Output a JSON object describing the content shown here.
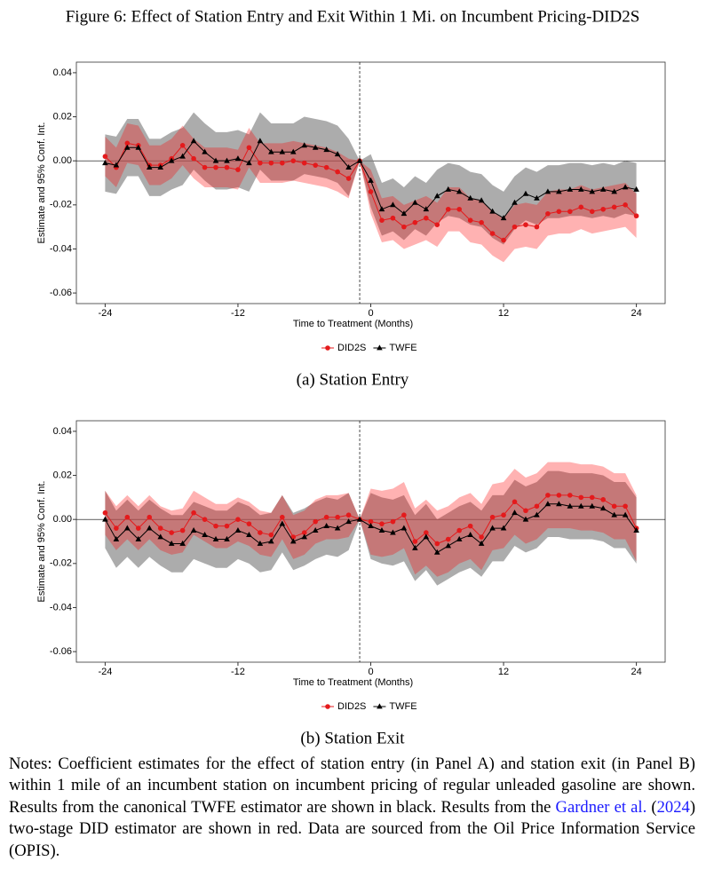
{
  "figure_title": "Figure 6: Effect of Station Entry and Exit Within 1 Mi. on Incumbent Pricing-DID2S",
  "chart_data": [
    {
      "type": "line",
      "caption": "(a) Station Entry",
      "xlabel": "Time to Treatment (Months)",
      "ylabel": "Estimate and 95% Conf. Int.",
      "x": [
        -24,
        -23,
        -22,
        -21,
        -20,
        -19,
        -18,
        -17,
        -16,
        -15,
        -14,
        -13,
        -12,
        -11,
        -10,
        -9,
        -8,
        -7,
        -6,
        -5,
        -4,
        -3,
        -2,
        -1,
        0,
        1,
        2,
        3,
        4,
        5,
        6,
        7,
        8,
        9,
        10,
        11,
        12,
        13,
        14,
        15,
        16,
        17,
        18,
        19,
        20,
        21,
        22,
        23,
        24
      ],
      "xlim": [
        -26.6,
        26.6
      ],
      "ylim": [
        -0.0648,
        0.0448
      ],
      "xticks": [
        -24,
        -12,
        0,
        12,
        24
      ],
      "yticks": [
        0.04,
        0.02,
        {
          "value": 0,
          "label": "0.00"
        },
        -0.02,
        -0.04,
        -0.06
      ],
      "vline": -1,
      "series": [
        {
          "name": "DID2S",
          "color": "#e41a1c",
          "marker": "circle",
          "band_color": "#ff0000",
          "band_opacity": 0.3,
          "values": [
            0.002,
            -0.003,
            0.008,
            0.007,
            -0.002,
            -0.002,
            0.001,
            0.007,
            0.001,
            -0.003,
            -0.003,
            -0.003,
            -0.004,
            0.006,
            -0.001,
            -0.001,
            -0.001,
            0.0,
            -0.001,
            -0.002,
            -0.003,
            -0.005,
            -0.008,
            0,
            -0.014,
            -0.027,
            -0.026,
            -0.03,
            -0.028,
            -0.026,
            -0.029,
            -0.022,
            -0.022,
            -0.027,
            -0.028,
            -0.033,
            -0.036,
            -0.03,
            -0.029,
            -0.03,
            -0.024,
            -0.023,
            -0.023,
            -0.021,
            -0.023,
            -0.022,
            -0.021,
            -0.02,
            -0.025
          ],
          "lower": [
            -0.007,
            -0.012,
            -0.001,
            -0.002,
            -0.011,
            -0.011,
            -0.008,
            -0.002,
            -0.008,
            -0.012,
            -0.012,
            -0.012,
            -0.013,
            -0.003,
            -0.01,
            -0.01,
            -0.01,
            -0.009,
            -0.01,
            -0.011,
            -0.012,
            -0.014,
            -0.017,
            0,
            -0.024,
            -0.037,
            -0.036,
            -0.04,
            -0.038,
            -0.036,
            -0.039,
            -0.032,
            -0.032,
            -0.037,
            -0.038,
            -0.043,
            -0.046,
            -0.04,
            -0.039,
            -0.04,
            -0.034,
            -0.033,
            -0.033,
            -0.031,
            -0.033,
            -0.032,
            -0.031,
            -0.03,
            -0.035
          ],
          "upper": [
            0.011,
            0.006,
            0.017,
            0.016,
            0.007,
            0.007,
            0.01,
            0.016,
            0.01,
            0.006,
            0.006,
            0.006,
            0.005,
            0.015,
            0.008,
            0.008,
            0.008,
            0.009,
            0.008,
            0.007,
            0.006,
            0.004,
            0.001,
            0,
            -0.004,
            -0.017,
            -0.016,
            -0.02,
            -0.018,
            -0.016,
            -0.019,
            -0.012,
            -0.012,
            -0.017,
            -0.018,
            -0.023,
            -0.026,
            -0.02,
            -0.019,
            -0.02,
            -0.014,
            -0.013,
            -0.013,
            -0.011,
            -0.013,
            -0.012,
            -0.011,
            -0.01,
            -0.015
          ]
        },
        {
          "name": "TWFE",
          "color": "#000000",
          "marker": "triangle",
          "band_color": "#808080",
          "band_opacity": 0.65,
          "values": [
            -0.001,
            -0.002,
            0.006,
            0.006,
            -0.003,
            -0.003,
            0.0,
            0.002,
            0.009,
            0.004,
            0.0,
            0.0,
            0.001,
            -0.001,
            0.009,
            0.004,
            0.004,
            0.004,
            0.007,
            0.006,
            0.005,
            0.003,
            -0.003,
            0,
            -0.009,
            -0.022,
            -0.02,
            -0.024,
            -0.019,
            -0.022,
            -0.016,
            -0.013,
            -0.014,
            -0.017,
            -0.018,
            -0.023,
            -0.026,
            -0.019,
            -0.015,
            -0.017,
            -0.014,
            -0.014,
            -0.013,
            -0.013,
            -0.014,
            -0.013,
            -0.014,
            -0.012,
            -0.013
          ],
          "lower": [
            -0.014,
            -0.015,
            -0.007,
            -0.007,
            -0.016,
            -0.016,
            -0.013,
            -0.011,
            -0.004,
            -0.009,
            -0.013,
            -0.013,
            -0.012,
            -0.014,
            -0.004,
            -0.009,
            -0.009,
            -0.009,
            -0.006,
            -0.007,
            -0.008,
            -0.01,
            -0.016,
            0,
            -0.021,
            -0.034,
            -0.032,
            -0.036,
            -0.031,
            -0.034,
            -0.028,
            -0.025,
            -0.026,
            -0.029,
            -0.03,
            -0.035,
            -0.038,
            -0.031,
            -0.027,
            -0.029,
            -0.026,
            -0.026,
            -0.025,
            -0.025,
            -0.026,
            -0.025,
            -0.026,
            -0.024,
            -0.025
          ],
          "upper": [
            0.012,
            0.011,
            0.019,
            0.019,
            0.01,
            0.01,
            0.013,
            0.015,
            0.022,
            0.017,
            0.013,
            0.013,
            0.014,
            0.012,
            0.022,
            0.017,
            0.017,
            0.017,
            0.02,
            0.019,
            0.018,
            0.016,
            0.01,
            0,
            0.003,
            -0.01,
            -0.008,
            -0.012,
            -0.007,
            -0.01,
            -0.004,
            -0.001,
            -0.002,
            -0.005,
            -0.006,
            -0.011,
            -0.014,
            -0.007,
            -0.003,
            -0.005,
            -0.002,
            -0.002,
            -0.001,
            -0.001,
            -0.002,
            -0.001,
            -0.002,
            0.0,
            -0.001
          ]
        }
      ]
    },
    {
      "type": "line",
      "caption": "(b) Station Exit",
      "xlabel": "Time to Treatment (Months)",
      "ylabel": "Estimate and 95% Conf. Int.",
      "x": [
        -24,
        -23,
        -22,
        -21,
        -20,
        -19,
        -18,
        -17,
        -16,
        -15,
        -14,
        -13,
        -12,
        -11,
        -10,
        -9,
        -8,
        -7,
        -6,
        -5,
        -4,
        -3,
        -2,
        -1,
        0,
        1,
        2,
        3,
        4,
        5,
        6,
        7,
        8,
        9,
        10,
        11,
        12,
        13,
        14,
        15,
        16,
        17,
        18,
        19,
        20,
        21,
        22,
        23,
        24
      ],
      "xlim": [
        -26.6,
        26.6
      ],
      "ylim": [
        -0.0648,
        0.0448
      ],
      "xticks": [
        -24,
        -12,
        0,
        12,
        24
      ],
      "yticks": [
        0.04,
        0.02,
        {
          "value": 0,
          "label": "0.00"
        },
        -0.02,
        -0.04,
        -0.06
      ],
      "vline": -1,
      "series": [
        {
          "name": "DID2S",
          "color": "#e41a1c",
          "marker": "circle",
          "band_color": "#ff0000",
          "band_opacity": 0.3,
          "values": [
            0.003,
            -0.004,
            0.001,
            -0.004,
            0.001,
            -0.004,
            -0.006,
            -0.005,
            0.003,
            0.0,
            -0.003,
            -0.003,
            0.0,
            -0.002,
            -0.006,
            -0.007,
            0.001,
            -0.008,
            -0.006,
            -0.001,
            0.001,
            0.001,
            0.002,
            0,
            -0.001,
            -0.002,
            -0.001,
            0.002,
            -0.01,
            -0.006,
            -0.011,
            -0.009,
            -0.005,
            -0.003,
            -0.008,
            0.001,
            0.002,
            0.008,
            0.004,
            0.006,
            0.011,
            0.011,
            0.011,
            0.01,
            0.01,
            0.009,
            0.006,
            0.006,
            -0.004
          ],
          "lower": [
            -0.007,
            -0.014,
            -0.009,
            -0.014,
            -0.009,
            -0.014,
            -0.016,
            -0.015,
            -0.007,
            -0.01,
            -0.013,
            -0.013,
            -0.01,
            -0.012,
            -0.016,
            -0.017,
            -0.009,
            -0.018,
            -0.016,
            -0.011,
            -0.009,
            -0.009,
            -0.008,
            0,
            -0.016,
            -0.017,
            -0.016,
            -0.013,
            -0.025,
            -0.021,
            -0.026,
            -0.024,
            -0.02,
            -0.018,
            -0.023,
            -0.014,
            -0.013,
            -0.007,
            -0.011,
            -0.009,
            -0.004,
            -0.004,
            -0.004,
            -0.005,
            -0.005,
            -0.006,
            -0.009,
            -0.009,
            -0.019
          ],
          "upper": [
            0.013,
            0.006,
            0.011,
            0.006,
            0.011,
            0.006,
            0.004,
            0.005,
            0.013,
            0.01,
            0.007,
            0.007,
            0.01,
            0.008,
            0.004,
            0.003,
            0.011,
            0.002,
            0.004,
            0.009,
            0.011,
            0.011,
            0.012,
            0,
            0.014,
            0.013,
            0.014,
            0.017,
            0.005,
            0.009,
            0.004,
            0.006,
            0.01,
            0.012,
            0.007,
            0.016,
            0.017,
            0.023,
            0.019,
            0.021,
            0.026,
            0.026,
            0.026,
            0.025,
            0.025,
            0.024,
            0.021,
            0.021,
            0.011
          ]
        },
        {
          "name": "TWFE",
          "color": "#000000",
          "marker": "triangle",
          "band_color": "#808080",
          "band_opacity": 0.65,
          "values": [
            0.0,
            -0.009,
            -0.004,
            -0.009,
            -0.004,
            -0.008,
            -0.011,
            -0.011,
            -0.005,
            -0.007,
            -0.009,
            -0.009,
            -0.005,
            -0.007,
            -0.011,
            -0.01,
            -0.002,
            -0.01,
            -0.008,
            -0.005,
            -0.003,
            -0.004,
            -0.001,
            0,
            -0.003,
            -0.005,
            -0.006,
            -0.004,
            -0.013,
            -0.008,
            -0.015,
            -0.012,
            -0.009,
            -0.007,
            -0.011,
            -0.004,
            -0.004,
            0.003,
            0.0,
            0.002,
            0.007,
            0.007,
            0.006,
            0.006,
            0.006,
            0.005,
            0.002,
            0.002,
            -0.005
          ],
          "lower": [
            -0.013,
            -0.022,
            -0.017,
            -0.022,
            -0.017,
            -0.021,
            -0.024,
            -0.024,
            -0.018,
            -0.02,
            -0.022,
            -0.022,
            -0.018,
            -0.02,
            -0.024,
            -0.023,
            -0.015,
            -0.023,
            -0.021,
            -0.018,
            -0.016,
            -0.017,
            -0.014,
            0,
            -0.018,
            -0.02,
            -0.021,
            -0.019,
            -0.028,
            -0.023,
            -0.03,
            -0.027,
            -0.024,
            -0.022,
            -0.026,
            -0.019,
            -0.019,
            -0.012,
            -0.015,
            -0.013,
            -0.008,
            -0.008,
            -0.009,
            -0.009,
            -0.009,
            -0.01,
            -0.013,
            -0.013,
            -0.02
          ],
          "upper": [
            0.013,
            0.004,
            0.009,
            0.004,
            0.009,
            0.005,
            0.002,
            0.002,
            0.008,
            0.006,
            0.004,
            0.004,
            0.008,
            0.006,
            0.002,
            0.003,
            0.011,
            0.003,
            0.005,
            0.008,
            0.01,
            0.009,
            0.012,
            0,
            0.012,
            0.01,
            0.009,
            0.011,
            0.002,
            0.007,
            0.0,
            0.003,
            0.006,
            0.008,
            0.004,
            0.011,
            0.011,
            0.018,
            0.015,
            0.017,
            0.022,
            0.022,
            0.021,
            0.021,
            0.021,
            0.02,
            0.017,
            0.017,
            0.01
          ]
        }
      ]
    }
  ],
  "notes": [
    "Notes: Coefficient estimates for the effect of station entry (in Panel A) and station exit (in Panel B) within 1 mile of an incumbent station on incumbent pricing of regular unleaded gasoline are shown. Results from the canonical TWFE estimator are shown in black. Results from the ",
    "Gardner et al.",
    " (",
    "2024",
    ") two-stage DID estimator are shown in red. Data are sourced from the Oil Price Information Service (OPIS)."
  ]
}
